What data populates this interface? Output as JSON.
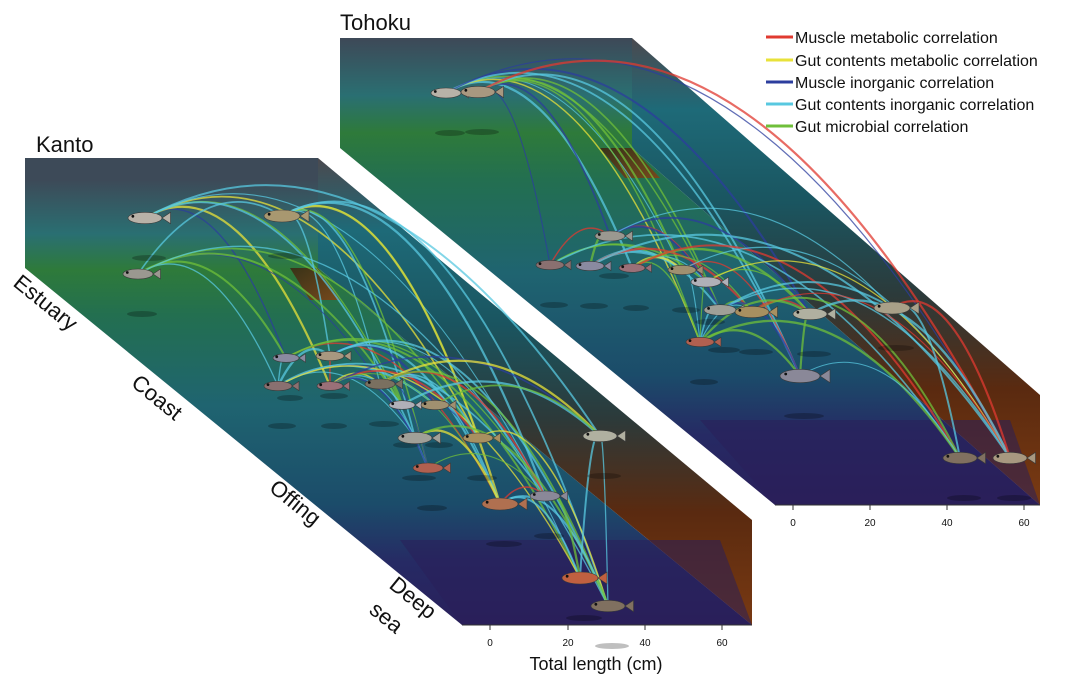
{
  "regions": {
    "kanto": "Kanto",
    "tohoku": "Tohoku"
  },
  "zones": [
    "Estuary",
    "Coast",
    "Offing",
    "Deep",
    "sea"
  ],
  "legend": [
    {
      "label": "Muscle metabolic correlation",
      "color": "#e03a30"
    },
    {
      "label": "Gut contents metabolic correlation",
      "color": "#e8e23a"
    },
    {
      "label": "Muscle inorganic correlation",
      "color": "#2c3e9e"
    },
    {
      "label": "Gut contents inorganic correlation",
      "color": "#58c8e0"
    },
    {
      "label": "Gut microbial correlation",
      "color": "#6fbf3a"
    }
  ],
  "axis": {
    "title": "Total length (cm)",
    "kanto_ticks": [
      "0",
      "20",
      "40",
      "60"
    ],
    "tohoku_ticks": [
      "0",
      "20",
      "40",
      "60"
    ]
  }
}
